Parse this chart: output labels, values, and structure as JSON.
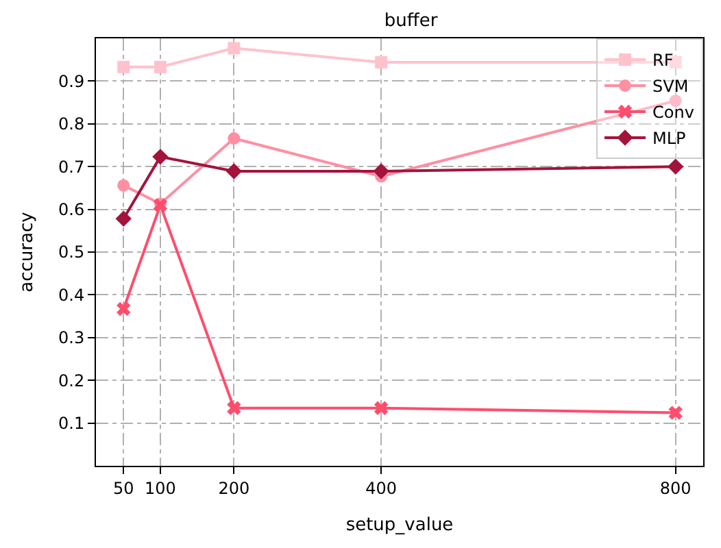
{
  "chart_data": {
    "type": "line",
    "title": "buffer",
    "xlabel": "setup_value",
    "ylabel": "accuracy",
    "x": [
      50,
      100,
      200,
      400,
      800
    ],
    "xlim": [
      12.5,
      837.5
    ],
    "xticks": [
      50,
      100,
      200,
      400,
      800
    ],
    "ylim": [
      0,
      1
    ],
    "yticks": [
      0.1,
      0.2,
      0.3,
      0.4,
      0.5,
      0.6,
      0.7,
      0.8,
      0.9
    ],
    "grid": true,
    "legend": "top right",
    "line_style": "solid",
    "series": [
      {
        "name": "RF",
        "color": "#ffc2cd",
        "marker": "square",
        "values": [
          0.933,
          0.933,
          0.977,
          0.944,
          0.944
        ]
      },
      {
        "name": "SVM",
        "color": "#ff8fa3",
        "marker": "circle",
        "values": [
          0.656,
          0.613,
          0.766,
          0.677,
          0.854
        ]
      },
      {
        "name": "Conv",
        "color": "#ff4d6d",
        "marker": "cross",
        "values": [
          0.367,
          0.61,
          0.135,
          0.135,
          0.124
        ]
      },
      {
        "name": "MLP",
        "color": "#a4133c",
        "marker": "diamond",
        "values": [
          0.578,
          0.723,
          0.689,
          0.689,
          0.7
        ]
      }
    ]
  }
}
